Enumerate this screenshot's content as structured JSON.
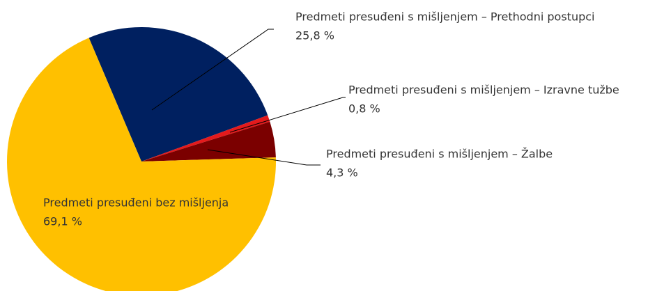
{
  "chart_data": {
    "type": "pie",
    "categories": [
      "Predmeti presuđeni s mišljenjem – Prethodni postupci",
      "Predmeti presuđeni s mišljenjem – Izravne tužbe",
      "Predmeti presuđeni s mišljenjem – Žalbe",
      "Predmeti presuđeni bez mišljenja"
    ],
    "values": [
      25.8,
      0.8,
      4.3,
      69.1
    ],
    "value_labels": [
      "25,8 %",
      "0,8 %",
      "4,3 %",
      "69,1 %"
    ],
    "colors": [
      "#002060",
      "#e41a1c",
      "#7b0000",
      "#ffc000"
    ]
  }
}
